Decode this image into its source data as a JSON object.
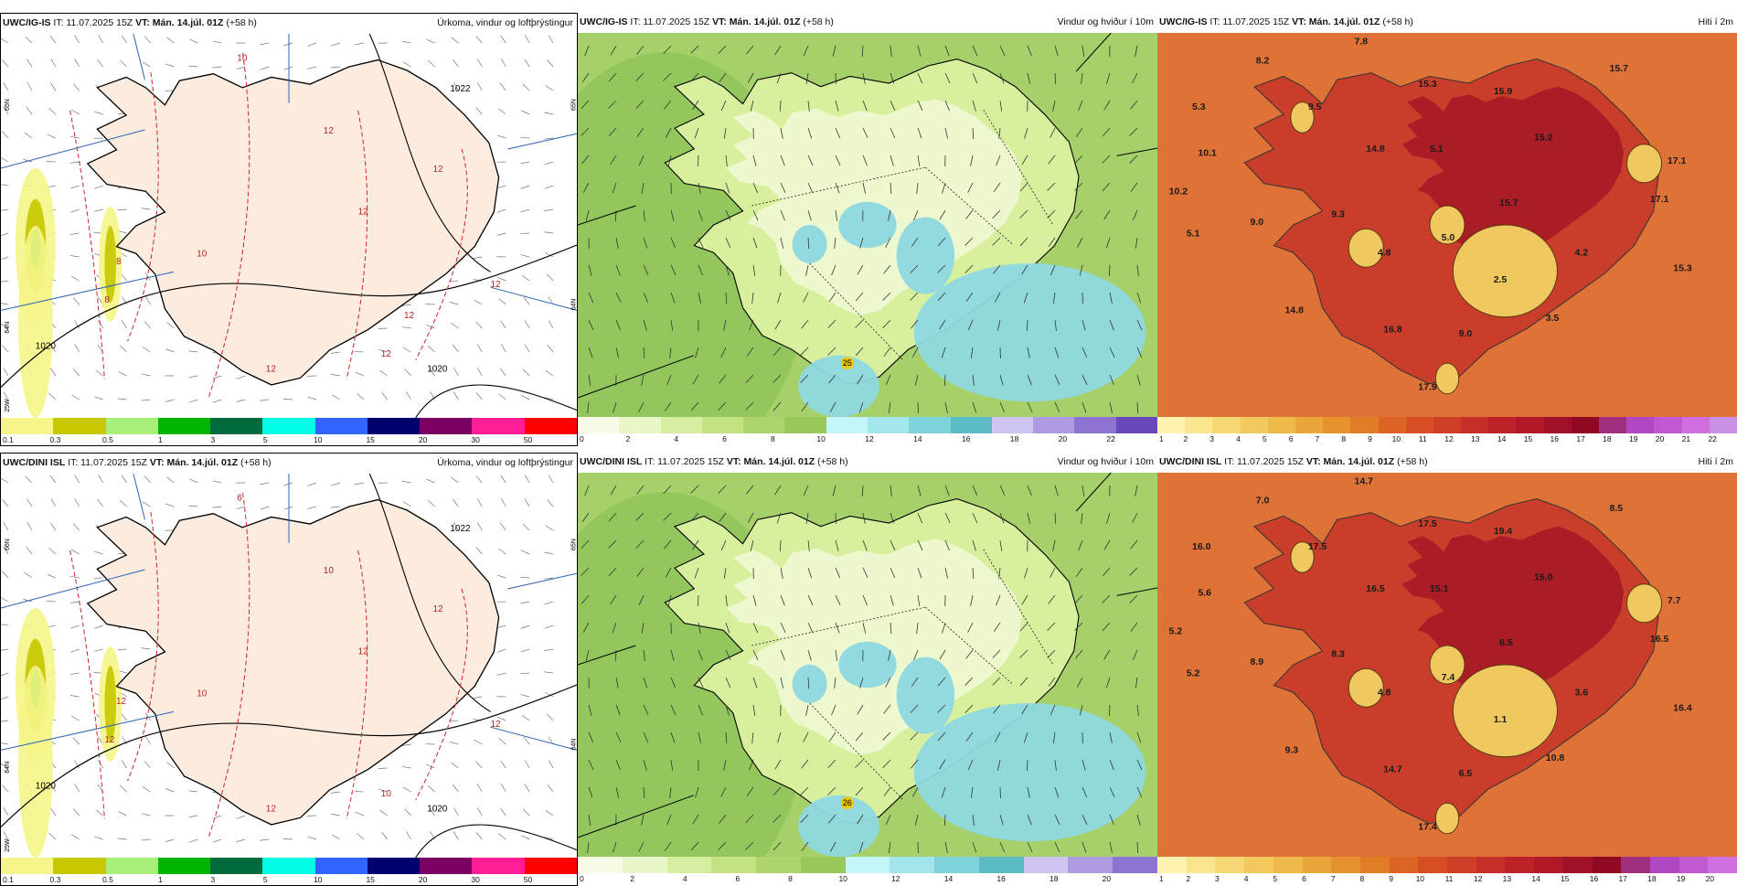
{
  "panels": [
    {
      "model": "UWC/IG-IS",
      "it": "IT: 11.07.2025 15Z",
      "vt": "VT: Mán. 14.júl. 01Z",
      "lead": "(+58 h)",
      "title": "Úrkoma, vindur og loftþrýstingur",
      "type": "precip",
      "colorbar": {
        "colors": [
          "#f5f58a",
          "#c8c800",
          "#a8f07a",
          "#00b400",
          "#006a3c",
          "#00ffe6",
          "#3264ff",
          "#00006e",
          "#7a0064",
          "#ff1e96",
          "#ff0000"
        ],
        "labels": [
          "0.1",
          "0.3",
          "0.5",
          "1",
          "3",
          "5",
          "10",
          "15",
          "20",
          "30",
          "50"
        ]
      },
      "isobar_labels": [
        "1022",
        "1020",
        "1020"
      ],
      "contour_labels": [
        "10",
        "12",
        "12",
        "12",
        "12",
        "8",
        "10",
        "8",
        "12",
        "12",
        "12"
      ],
      "axis_labels": [
        "65N",
        "64N",
        "25W",
        "65N",
        "64N"
      ]
    },
    {
      "model": "UWC/IG-IS",
      "it": "IT: 11.07.2025 15Z",
      "vt": "VT: Mán. 14.júl. 01Z",
      "lead": "(+58 h)",
      "title": "Vindur og hviður í 10m",
      "type": "wind",
      "colorbar": {
        "colors": [
          "#f7fbe8",
          "#e9f6c8",
          "#d6eea0",
          "#c2e284",
          "#aed46c",
          "#98c85a",
          "#c4f5f8",
          "#a2e6ec",
          "#7fd2da",
          "#5cbcc6",
          "#d0c4f0",
          "#ad9ae0",
          "#8c74d0",
          "#6a48bc"
        ],
        "labels": [
          "0",
          "2",
          "4",
          "6",
          "8",
          "10",
          "12",
          "14",
          "16",
          "18",
          "20",
          "22"
        ]
      },
      "values": [
        "25"
      ]
    },
    {
      "model": "UWC/IG-IS",
      "it": "IT: 11.07.2025 15Z",
      "vt": "VT: Mán. 14.júl. 01Z",
      "lead": "(+58 h)",
      "title": "Hiti í 2m",
      "type": "temp",
      "colorbar": {
        "colors": [
          "#fff3b0",
          "#fbe690",
          "#f7d874",
          "#f2c95c",
          "#eeb94a",
          "#eaa63a",
          "#e6922e",
          "#e17c26",
          "#dc6424",
          "#d64e24",
          "#cf3e26",
          "#c62f28",
          "#bc2228",
          "#b01828",
          "#a01026",
          "#900822",
          "#a0307e",
          "#b048c4",
          "#c058d0",
          "#d070e0",
          "#c890e0"
        ],
        "labels": [
          "1",
          "2",
          "3",
          "4",
          "5",
          "6",
          "7",
          "8",
          "9",
          "10",
          "11",
          "12",
          "13",
          "14",
          "15",
          "16",
          "17",
          "18",
          "19",
          "20",
          "21",
          "22"
        ]
      },
      "values": [
        "7.8",
        "8.2",
        "15.7",
        "5.3",
        "9.5",
        "15.3",
        "15.9",
        "10.1",
        "14.8",
        "5.1",
        "15.2",
        "17.1",
        "10.2",
        "9.0",
        "9.3",
        "15.7",
        "17.1",
        "5.1",
        "4.8",
        "5.0",
        "4.2",
        "2.5",
        "14.8",
        "16.8",
        "9.0",
        "3.5",
        "15.3",
        "17.9"
      ]
    },
    {
      "model": "UWC/DINI ISL",
      "it": "IT: 11.07.2025 15Z",
      "vt": "VT: Mán. 14.júl. 01Z",
      "lead": "(+58 h)",
      "title": "Úrkoma, vindur og loftþrýstingur",
      "type": "precip",
      "colorbar": {
        "colors": [
          "#f5f58a",
          "#c8c800",
          "#a8f07a",
          "#00b400",
          "#006a3c",
          "#00ffe6",
          "#3264ff",
          "#00006e",
          "#7a0064",
          "#ff1e96",
          "#ff0000"
        ],
        "labels": [
          "0.1",
          "0.3",
          "0.5",
          "1",
          "3",
          "5",
          "10",
          "15",
          "20",
          "30",
          "50"
        ]
      },
      "isobar_labels": [
        "1022",
        "1020",
        "1020"
      ],
      "contour_labels": [
        "6",
        "10",
        "12",
        "12",
        "10",
        "12",
        "10",
        "12",
        "12",
        "12"
      ],
      "axis_labels": [
        "66N",
        "64N",
        "25W",
        "65N",
        "64N"
      ]
    },
    {
      "model": "UWC/DINI ISL",
      "it": "IT: 11.07.2025 15Z",
      "vt": "VT: Mán. 14.júl. 01Z",
      "lead": "(+58 h)",
      "title": "Vindur og hviður í 10m",
      "type": "wind",
      "colorbar": {
        "colors": [
          "#f7fbe8",
          "#e9f6c8",
          "#d6eea0",
          "#c2e284",
          "#aed46c",
          "#98c85a",
          "#c4f5f8",
          "#a2e6ec",
          "#7fd2da",
          "#5cbcc6",
          "#d0c4f0",
          "#ad9ae0",
          "#8c74d0"
        ],
        "labels": [
          "0",
          "2",
          "4",
          "6",
          "8",
          "10",
          "12",
          "14",
          "16",
          "18",
          "20"
        ]
      },
      "values": [
        "26"
      ]
    },
    {
      "model": "UWC/DINI ISL",
      "it": "IT: 11.07.2025 15Z",
      "vt": "VT: Mán. 14.júl. 01Z",
      "lead": "(+58 h)",
      "title": "Hiti í 2m",
      "type": "temp",
      "colorbar": {
        "colors": [
          "#fff3b0",
          "#fbe690",
          "#f7d874",
          "#f2c95c",
          "#eeb94a",
          "#eaa63a",
          "#e6922e",
          "#e17c26",
          "#dc6424",
          "#d64e24",
          "#cf3e26",
          "#c62f28",
          "#bc2228",
          "#b01828",
          "#a01026",
          "#900822",
          "#a0307e",
          "#b048c4",
          "#c058d0",
          "#d070e0"
        ],
        "labels": [
          "1",
          "2",
          "3",
          "4",
          "5",
          "6",
          "7",
          "8",
          "9",
          "10",
          "11",
          "12",
          "13",
          "14",
          "15",
          "16",
          "17",
          "18",
          "19",
          "20"
        ]
      },
      "values": [
        "14.7",
        "7.0",
        "8.5",
        "16.0",
        "17.5",
        "17.5",
        "19.4",
        "5.6",
        "16.5",
        "15.1",
        "15.0",
        "7.7",
        "5.2",
        "8.9",
        "8.3",
        "6.5",
        "16.5",
        "5.2",
        "4.8",
        "7.4",
        "3.6",
        "1.1",
        "9.3",
        "14.7",
        "6.5",
        "10.8",
        "16.4",
        "17.4"
      ]
    }
  ]
}
